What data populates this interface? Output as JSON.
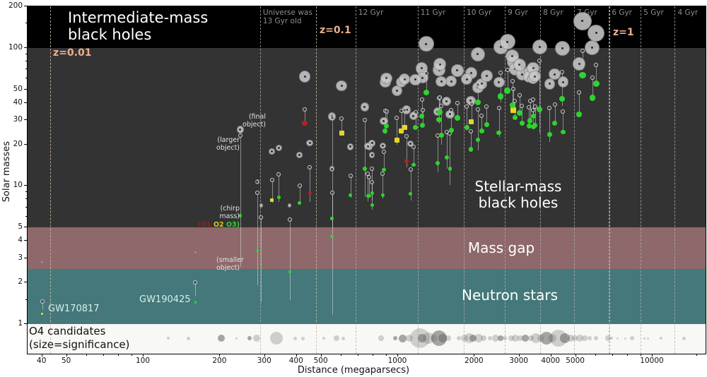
{
  "chart_data": {
    "type": "scatter",
    "description": "Gravitational-wave events: component / chirp / final masses versus distance, with O4 candidate strip",
    "xlabel": "Distance (megaparsecs)",
    "ylabel": "Solar masses",
    "x_scale": "log",
    "y_scale": "log",
    "x_range_mpc": [
      35,
      16200
    ],
    "y_range_msun": [
      1,
      200
    ],
    "x_ticks": [
      40,
      50,
      100,
      200,
      300,
      400,
      500,
      1000,
      2000,
      3000,
      4000,
      5000,
      10000
    ],
    "x_minor_ticks": [
      60,
      70,
      80,
      90,
      600,
      700,
      800,
      900,
      6000,
      7000,
      8000,
      9000,
      15000
    ],
    "y_ticks": [
      200,
      100,
      50,
      40,
      30,
      20,
      10,
      5,
      4,
      3,
      2,
      1
    ],
    "y_minor_ticks": [
      150,
      90,
      80,
      70,
      60,
      9,
      8,
      7,
      6,
      1.5
    ],
    "regions": [
      {
        "name": "intermediate-mass-black-holes",
        "mass_range": [
          100,
          200
        ],
        "color": "#000000"
      },
      {
        "name": "stellar-mass-black-holes",
        "mass_range": [
          5,
          100
        ],
        "color": "#333333"
      },
      {
        "name": "mass-gap",
        "mass_range": [
          2.5,
          5
        ],
        "color": "#8e686a"
      },
      {
        "name": "neutron-stars",
        "mass_range": [
          1,
          2.5
        ],
        "color": "#44787a"
      },
      {
        "name": "o4-candidates-strip",
        "strip": true,
        "color": "#f8f8f6"
      }
    ],
    "labels": {
      "imbh_line1": "Intermediate-mass",
      "imbh_line2": "black holes",
      "stellar_line1": "Stellar-mass",
      "stellar_line2": "black holes",
      "mass_gap": "Mass gap",
      "neutron_stars": "Neutron stars",
      "o4_line1": "O4 candidates",
      "o4_line2": "(size=significance)",
      "final_object_l1": "(final",
      "final_object_l2": "object)",
      "larger_object_l1": "(larger",
      "larger_object_l2": "object)",
      "chirp_mass_l1": "(chirp",
      "chirp_mass_l2": "mass)",
      "smaller_object_l1": "(smaller",
      "smaller_object_l2": "object)",
      "runs_open": "(",
      "run_o1": "O1",
      "run_o2": "O2",
      "run_o3": "O3",
      "runs_close": ")",
      "gw170817": "GW170817",
      "gw190425": "GW190425",
      "xlabel": "Distance (megaparsecs)",
      "ylabel": "Solar masses"
    },
    "cosmology": {
      "age_lines": [
        {
          "label": "12 Gyr",
          "distance_mpc": 681
        },
        {
          "label": "11 Gyr",
          "distance_mpc": 1195
        },
        {
          "label": "10 Gyr",
          "distance_mpc": 1813
        },
        {
          "label": "9 Gyr",
          "distance_mpc": 2630
        },
        {
          "label": "8 Gyr",
          "distance_mpc": 3620
        },
        {
          "label": "7 Gyr",
          "distance_mpc": 4920
        },
        {
          "label": "6 Gyr",
          "distance_mpc": 6740
        },
        {
          "label": "5 Gyr",
          "distance_mpc": 8980
        },
        {
          "label": "4 Gyr",
          "distance_mpc": 12230
        }
      ],
      "universe_line": {
        "label_line1": "Universe was",
        "label_line2": "13 Gyr old",
        "distance_mpc": 287
      },
      "z_lines": [
        {
          "label": "z=0.01",
          "distance_mpc": 43
        },
        {
          "label": "z=0.1",
          "distance_mpc": 476
        },
        {
          "label": "z=1",
          "distance_mpc": 6770
        }
      ]
    },
    "run_colors": {
      "O1": "#b22222",
      "O2": "#e3d62c",
      "O3": "#2fd32f"
    },
    "marker_colors": {
      "final_fill": "#c9c9c9",
      "final_edge": "#8f8f8f",
      "final_center": "#2b2b2b",
      "error_line": "#ececec"
    },
    "events_columns": [
      "distance_mpc",
      "larger_mass",
      "smaller_mass",
      "chirp_mass",
      "final_mass",
      "run"
    ],
    "events": [
      [
        430,
        36,
        29,
        28.6,
        62,
        "O1"
      ],
      [
        1080,
        23,
        13.6,
        15.2,
        35.7,
        "O1"
      ],
      [
        450,
        13.7,
        7.7,
        8.9,
        20.5,
        "O1"
      ],
      [
        990,
        31,
        20,
        21.5,
        48.9,
        "O2"
      ],
      [
        320,
        11,
        7.6,
        7.9,
        17.8,
        "O2"
      ],
      [
        2840,
        50.6,
        34.3,
        35.4,
        79.5,
        "O2"
      ],
      [
        1030,
        35,
        23.8,
        24.9,
        56.3,
        "O2"
      ],
      [
        600,
        30.6,
        25.2,
        24.1,
        53.2,
        "O2"
      ],
      [
        40,
        1.46,
        1.27,
        1.19,
        2.8,
        "O2"
      ],
      [
        1060,
        35.4,
        26.7,
        26.5,
        59.4,
        "O2"
      ],
      [
        1940,
        39.5,
        29,
        29.2,
        65.4,
        "O2"
      ],
      [
        1550,
        24.6,
        13.4,
        16.0,
        41,
        "O3"
      ],
      [
        740,
        30.1,
        8.3,
        13.3,
        37.3,
        "O3"
      ],
      [
        5150,
        47.5,
        31.8,
        33.0,
        76.7,
        "O3"
      ],
      [
        4450,
        34.7,
        23.7,
        24.6,
        56.5,
        "O3"
      ],
      [
        2880,
        41.3,
        31.9,
        31.2,
        70.1,
        "O3"
      ],
      [
        160,
        2.0,
        1.6,
        1.44,
        3.3,
        "O3"
      ],
      [
        1450,
        43.3,
        28.4,
        30.2,
        69.1,
        "O3"
      ],
      [
        1430,
        23.3,
        12.6,
        14.6,
        34.5,
        "O3"
      ],
      [
        2060,
        35.7,
        18,
        21.6,
        51.6,
        "O3"
      ],
      [
        4130,
        39,
        28.4,
        28.5,
        64.5,
        "O3"
      ],
      [
        1860,
        37.4,
        25.3,
        26.6,
        59.3,
        "O3"
      ],
      [
        2530,
        66,
        40.5,
        44.5,
        101,
        "O3"
      ],
      [
        5300,
        95.3,
        69,
        63.3,
        156.3,
        "O3"
      ],
      [
        1240,
        42.2,
        32.8,
        32.1,
        71.0,
        "O3"
      ],
      [
        2490,
        36.5,
        22.6,
        24.3,
        56.4,
        "O3"
      ],
      [
        2690,
        69.1,
        47.8,
        49.1,
        110.9,
        "O3"
      ],
      [
        2810,
        57.1,
        35.5,
        38.3,
        87.2,
        "O3"
      ],
      [
        890,
        35.1,
        23.7,
        24.9,
        56.4,
        "O3"
      ],
      [
        2060,
        53.9,
        40.8,
        40.3,
        90.2,
        "O3"
      ],
      [
        4420,
        67,
        38.1,
        42.7,
        99,
        "O3"
      ],
      [
        770,
        11.6,
        8.4,
        8.5,
        19.2,
        "O3"
      ],
      [
        880,
        17.6,
        13.2,
        13.1,
        29.5,
        "O3"
      ],
      [
        3940,
        36.5,
        20.8,
        23.5,
        54.9,
        "O3"
      ],
      [
        790,
        13.4,
        7.8,
        8.9,
        20.4,
        "O3"
      ],
      [
        3070,
        38,
        29.4,
        28.6,
        64.3,
        "O3"
      ],
      [
        870,
        12.3,
        8.1,
        8.6,
        19.6,
        "O3"
      ],
      [
        3300,
        41.5,
        28.8,
        29.7,
        67.4,
        "O3"
      ],
      [
        3270,
        37.3,
        27.3,
        27.3,
        61.8,
        "O3"
      ],
      [
        240,
        23.2,
        2.59,
        6.09,
        25.6,
        "O3"
      ],
      [
        2130,
        32.1,
        26.2,
        25.0,
        54.9,
        "O3"
      ],
      [
        1600,
        24.1,
        10.2,
        13.3,
        33.1,
        "O3"
      ],
      [
        1460,
        43.9,
        35.6,
        34.3,
        75.8,
        "O3"
      ],
      [
        1620,
        35.3,
        24.4,
        25.3,
        57.2,
        "O3"
      ],
      [
        550,
        8.9,
        5.0,
        5.8,
        13.3,
        "O3"
      ],
      [
        3600,
        80.8,
        24.1,
        35.8,
        101.5,
        "O3"
      ],
      [
        760,
        12.3,
        7.8,
        8.5,
        19.4,
        "O3"
      ],
      [
        1290,
        65,
        47,
        47.5,
        107,
        "O3"
      ],
      [
        790,
        10.7,
        6.7,
        7.3,
        16.8,
        "O3"
      ],
      [
        650,
        11.9,
        8.2,
        8.6,
        19.2,
        "O3"
      ],
      [
        1930,
        24.9,
        18.1,
        18.4,
        41.4,
        "O3"
      ],
      [
        340,
        12.1,
        7.7,
        8.3,
        18.9,
        "O3"
      ],
      [
        3000,
        45.1,
        34.7,
        33.8,
        75.5,
        "O3"
      ],
      [
        1250,
        35.6,
        28.3,
        27.4,
        60.8,
        "O3"
      ],
      [
        290,
        5.9,
        1.44,
        2.58,
        7.2,
        "O3"
      ],
      [
        280,
        8.9,
        1.9,
        3.41,
        10.7,
        "O3"
      ],
      [
        3400,
        42.2,
        32.6,
        32.0,
        71.4,
        "O3"
      ],
      [
        900,
        34.5,
        28.9,
        27.2,
        60.2,
        "O3"
      ],
      [
        410,
        10.1,
        7.3,
        7.5,
        16.8,
        "O3"
      ],
      [
        2230,
        37.7,
        27.4,
        27.7,
        62.5,
        "O3"
      ],
      [
        3400,
        35.6,
        27.1,
        26.7,
        59.9,
        "O3"
      ],
      [
        3450,
        37.5,
        27.9,
        27.6,
        62.2,
        "O3"
      ],
      [
        1710,
        40,
        32.7,
        31.1,
        68.6,
        "O3"
      ],
      [
        1150,
        19.3,
        14.0,
        14.2,
        32.1,
        "O3"
      ],
      [
        1480,
        37.8,
        20.0,
        23.4,
        57,
        "O3"
      ],
      [
        1170,
        34.2,
        27.7,
        26.6,
        59,
        "O3"
      ],
      [
        1120,
        13.1,
        7.8,
        8.8,
        20.2,
        "O3"
      ],
      [
        550,
        31.1,
        1.17,
        4.3,
        32,
        "O3"
      ],
      [
        375,
        5.7,
        1.5,
        2.4,
        7.2,
        "O3"
      ],
      [
        5800,
        61,
        43,
        43.5,
        100,
        "O3"
      ],
      [
        6000,
        75,
        55,
        55,
        128,
        "O3"
      ]
    ],
    "o4_columns": [
      "distance_mpc",
      "size_px",
      "dark"
    ],
    "o4_candidates": [
      [
        125,
        2,
        0
      ],
      [
        150,
        2.5,
        0
      ],
      [
        202,
        5,
        1
      ],
      [
        232,
        1.5,
        0
      ],
      [
        261,
        3,
        1
      ],
      [
        278,
        5,
        0
      ],
      [
        333,
        9,
        0
      ],
      [
        395,
        2.5,
        0
      ],
      [
        422,
        2.5,
        0
      ],
      [
        511,
        2,
        0
      ],
      [
        573,
        4,
        0
      ],
      [
        611,
        2.5,
        0
      ],
      [
        858,
        4,
        0
      ],
      [
        975,
        3,
        1
      ],
      [
        1040,
        5.5,
        1
      ],
      [
        1108,
        5,
        0
      ],
      [
        1220,
        14,
        0
      ],
      [
        1243,
        6,
        1
      ],
      [
        1317,
        8,
        0
      ],
      [
        1385,
        5,
        0
      ],
      [
        1450,
        11,
        1
      ],
      [
        1497,
        6,
        1
      ],
      [
        1576,
        4,
        0
      ],
      [
        1733,
        3,
        0
      ],
      [
        1822,
        5,
        0
      ],
      [
        1908,
        7,
        0
      ],
      [
        1970,
        5,
        1
      ],
      [
        2073,
        6,
        0
      ],
      [
        2170,
        4,
        0
      ],
      [
        2290,
        3,
        0
      ],
      [
        2420,
        5,
        0
      ],
      [
        2530,
        4,
        1
      ],
      [
        2630,
        3,
        0
      ],
      [
        2780,
        4,
        0
      ],
      [
        2890,
        5,
        0
      ],
      [
        3020,
        4,
        0
      ],
      [
        3160,
        5,
        1
      ],
      [
        3330,
        4,
        0
      ],
      [
        3480,
        7,
        0
      ],
      [
        3630,
        5,
        0
      ],
      [
        3820,
        9,
        1
      ],
      [
        4020,
        6,
        0
      ],
      [
        4280,
        12,
        0
      ],
      [
        4520,
        7,
        1
      ],
      [
        4760,
        5,
        0
      ],
      [
        4960,
        4,
        0
      ],
      [
        5180,
        5,
        0
      ],
      [
        5410,
        4,
        0
      ],
      [
        5650,
        3,
        0
      ],
      [
        6000,
        3,
        0
      ],
      [
        6700,
        4,
        0
      ],
      [
        6900,
        2,
        0
      ],
      [
        7300,
        1.5,
        0
      ],
      [
        7800,
        1.5,
        0
      ],
      [
        8300,
        3,
        0
      ],
      [
        9300,
        1.5,
        0
      ],
      [
        9600,
        1.5,
        0
      ],
      [
        10800,
        2,
        0
      ],
      [
        13300,
        2.5,
        0
      ],
      [
        16300,
        1.5,
        0
      ]
    ]
  }
}
